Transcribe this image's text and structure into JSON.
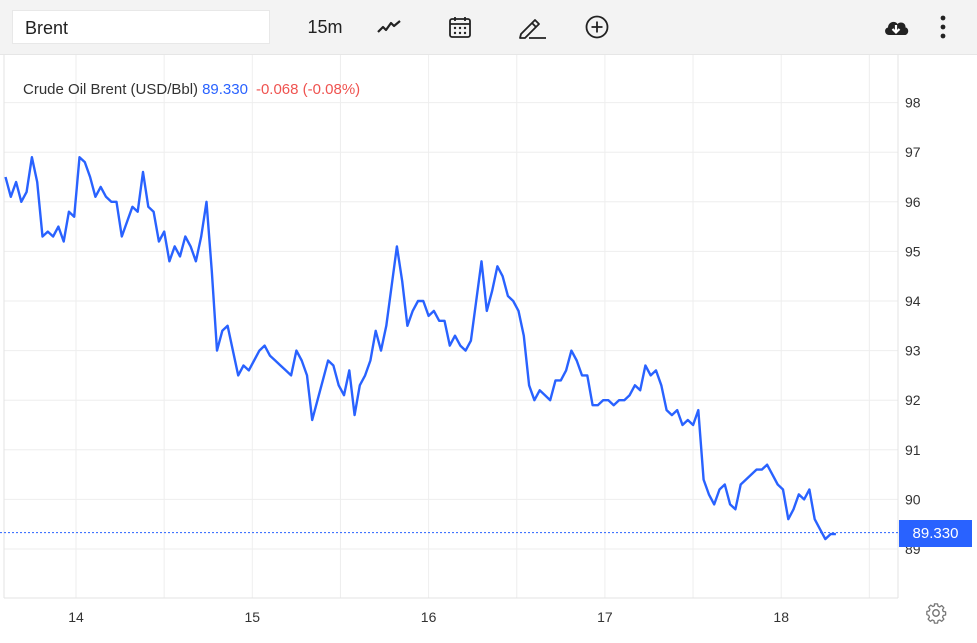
{
  "toolbar": {
    "symbol": "Brent",
    "interval": "15m",
    "icons": [
      "line-chart-icon",
      "calendar-icon",
      "draw-pencil-icon",
      "add-compare-icon",
      "cloud-download-icon",
      "more-vert-icon"
    ]
  },
  "legend": {
    "name": "Crude Oil Brent (USD/Bbl)",
    "price": "89.330",
    "change": "-0.068 (-0.08%)"
  },
  "last_price_tag": "89.330",
  "colors": {
    "line": "#2962ff",
    "change_negative": "#ef5350",
    "grid": "#eeeeee"
  },
  "chart_data": {
    "type": "line",
    "title": "",
    "xlabel": "",
    "ylabel": "",
    "x_ticks": [
      "14",
      "15",
      "16",
      "17",
      "18"
    ],
    "y_ticks": [
      "89",
      "90",
      "91",
      "92",
      "93",
      "94",
      "95",
      "96",
      "97",
      "98"
    ],
    "ylim": [
      88.0,
      99.0
    ],
    "xlim": [
      13.6,
      18.9
    ],
    "grid": true,
    "series": [
      {
        "values": [
          [
            13.6,
            96.5
          ],
          [
            13.63,
            96.1
          ],
          [
            13.66,
            96.4
          ],
          [
            13.69,
            96.0
          ],
          [
            13.72,
            96.2
          ],
          [
            13.75,
            96.9
          ],
          [
            13.78,
            96.4
          ],
          [
            13.81,
            95.3
          ],
          [
            13.84,
            95.4
          ],
          [
            13.87,
            95.3
          ],
          [
            13.9,
            95.5
          ],
          [
            13.93,
            95.2
          ],
          [
            13.96,
            95.8
          ],
          [
            13.99,
            95.7
          ],
          [
            14.02,
            96.9
          ],
          [
            14.05,
            96.8
          ],
          [
            14.08,
            96.5
          ],
          [
            14.11,
            96.1
          ],
          [
            14.14,
            96.3
          ],
          [
            14.17,
            96.1
          ],
          [
            14.2,
            96.0
          ],
          [
            14.23,
            96.0
          ],
          [
            14.26,
            95.3
          ],
          [
            14.29,
            95.6
          ],
          [
            14.32,
            95.9
          ],
          [
            14.35,
            95.8
          ],
          [
            14.38,
            96.6
          ],
          [
            14.41,
            95.9
          ],
          [
            14.44,
            95.8
          ],
          [
            14.47,
            95.2
          ],
          [
            14.5,
            95.4
          ],
          [
            14.53,
            94.8
          ],
          [
            14.56,
            95.1
          ],
          [
            14.59,
            94.9
          ],
          [
            14.62,
            95.3
          ],
          [
            14.65,
            95.1
          ],
          [
            14.68,
            94.8
          ],
          [
            14.71,
            95.3
          ],
          [
            14.74,
            96.0
          ],
          [
            14.77,
            94.6
          ],
          [
            14.8,
            93.0
          ],
          [
            14.83,
            93.4
          ],
          [
            14.86,
            93.5
          ],
          [
            14.89,
            93.0
          ],
          [
            14.92,
            92.5
          ],
          [
            14.95,
            92.7
          ],
          [
            14.98,
            92.6
          ],
          [
            15.01,
            92.8
          ],
          [
            15.04,
            93.0
          ],
          [
            15.07,
            93.1
          ],
          [
            15.1,
            92.9
          ],
          [
            15.13,
            92.8
          ],
          [
            15.16,
            92.7
          ],
          [
            15.19,
            92.6
          ],
          [
            15.22,
            92.5
          ],
          [
            15.25,
            93.0
          ],
          [
            15.28,
            92.8
          ],
          [
            15.31,
            92.5
          ],
          [
            15.34,
            91.6
          ],
          [
            15.37,
            92.0
          ],
          [
            15.4,
            92.4
          ],
          [
            15.43,
            92.8
          ],
          [
            15.46,
            92.7
          ],
          [
            15.49,
            92.3
          ],
          [
            15.52,
            92.1
          ],
          [
            15.55,
            92.6
          ],
          [
            15.58,
            91.7
          ],
          [
            15.61,
            92.3
          ],
          [
            15.64,
            92.5
          ],
          [
            15.67,
            92.8
          ],
          [
            15.7,
            93.4
          ],
          [
            15.73,
            93.0
          ],
          [
            15.76,
            93.5
          ],
          [
            15.79,
            94.3
          ],
          [
            15.82,
            95.1
          ],
          [
            15.85,
            94.4
          ],
          [
            15.88,
            93.5
          ],
          [
            15.91,
            93.8
          ],
          [
            15.94,
            94.0
          ],
          [
            15.97,
            94.0
          ],
          [
            16.0,
            93.7
          ],
          [
            16.03,
            93.8
          ],
          [
            16.06,
            93.6
          ],
          [
            16.09,
            93.6
          ],
          [
            16.12,
            93.1
          ],
          [
            16.15,
            93.3
          ],
          [
            16.18,
            93.1
          ],
          [
            16.21,
            93.0
          ],
          [
            16.24,
            93.2
          ],
          [
            16.27,
            94.0
          ],
          [
            16.3,
            94.8
          ],
          [
            16.33,
            93.8
          ],
          [
            16.36,
            94.2
          ],
          [
            16.39,
            94.7
          ],
          [
            16.42,
            94.5
          ],
          [
            16.45,
            94.1
          ],
          [
            16.48,
            94.0
          ],
          [
            16.51,
            93.8
          ],
          [
            16.54,
            93.3
          ],
          [
            16.57,
            92.3
          ],
          [
            16.6,
            92.0
          ],
          [
            16.63,
            92.2
          ],
          [
            16.66,
            92.1
          ],
          [
            16.69,
            92.0
          ],
          [
            16.72,
            92.4
          ],
          [
            16.75,
            92.4
          ],
          [
            16.78,
            92.6
          ],
          [
            16.81,
            93.0
          ],
          [
            16.84,
            92.8
          ],
          [
            16.87,
            92.5
          ],
          [
            16.9,
            92.5
          ],
          [
            16.93,
            91.9
          ],
          [
            16.96,
            91.9
          ],
          [
            16.99,
            92.0
          ],
          [
            17.02,
            92.0
          ],
          [
            17.05,
            91.9
          ],
          [
            17.08,
            92.0
          ],
          [
            17.11,
            92.0
          ],
          [
            17.14,
            92.1
          ],
          [
            17.17,
            92.3
          ],
          [
            17.2,
            92.2
          ],
          [
            17.23,
            92.7
          ],
          [
            17.26,
            92.5
          ],
          [
            17.29,
            92.6
          ],
          [
            17.32,
            92.3
          ],
          [
            17.35,
            91.8
          ],
          [
            17.38,
            91.7
          ],
          [
            17.41,
            91.8
          ],
          [
            17.44,
            91.5
          ],
          [
            17.47,
            91.6
          ],
          [
            17.5,
            91.5
          ],
          [
            17.53,
            91.8
          ],
          [
            17.56,
            90.4
          ],
          [
            17.59,
            90.1
          ],
          [
            17.62,
            89.9
          ],
          [
            17.65,
            90.2
          ],
          [
            17.68,
            90.3
          ],
          [
            17.71,
            89.9
          ],
          [
            17.74,
            89.8
          ],
          [
            17.77,
            90.3
          ],
          [
            17.8,
            90.4
          ],
          [
            17.83,
            90.5
          ],
          [
            17.86,
            90.6
          ],
          [
            17.89,
            90.6
          ],
          [
            17.92,
            90.7
          ],
          [
            17.95,
            90.5
          ],
          [
            17.98,
            90.3
          ],
          [
            18.01,
            90.2
          ],
          [
            18.04,
            89.6
          ],
          [
            18.07,
            89.8
          ],
          [
            18.1,
            90.1
          ],
          [
            18.13,
            90.0
          ],
          [
            18.16,
            90.2
          ],
          [
            18.19,
            89.6
          ],
          [
            18.22,
            89.4
          ],
          [
            18.25,
            89.2
          ],
          [
            18.28,
            89.3
          ],
          [
            18.31,
            89.3
          ]
        ]
      }
    ]
  }
}
